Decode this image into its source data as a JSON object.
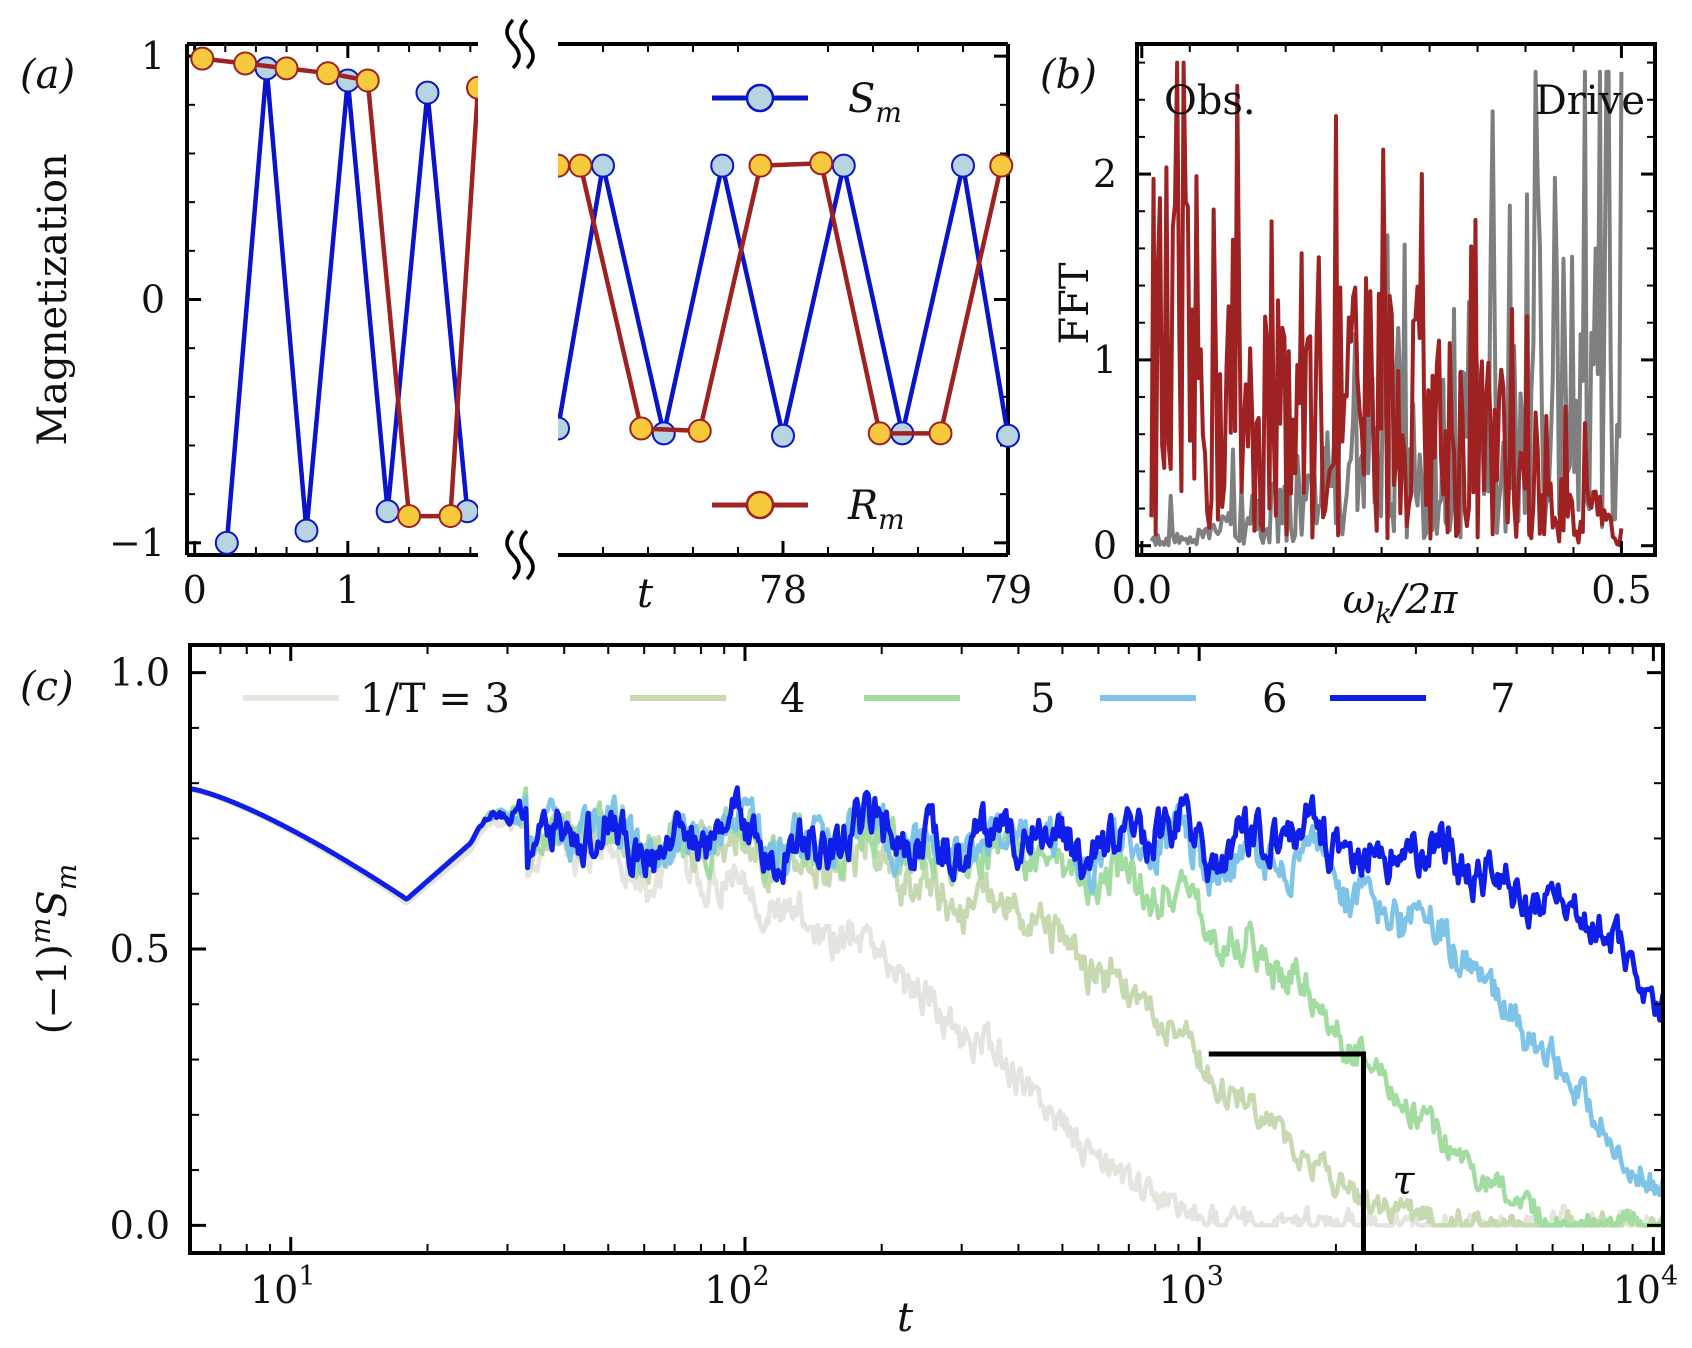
{
  "panels": {
    "a": {
      "label": "(a)"
    },
    "b": {
      "label": "(b)"
    },
    "c": {
      "label": "(c)"
    }
  },
  "chart_data": [
    {
      "panel": "a",
      "type": "line",
      "ylabel": "Magnetization",
      "xlabel": "t",
      "ylim": [
        -1.05,
        1.05
      ],
      "yticks": [
        -1,
        0,
        1
      ],
      "ytick_labels": [
        "−1",
        "0",
        "1"
      ],
      "broken_x_axis": true,
      "left_segment": {
        "xlim": [
          -0.05,
          1.85
        ],
        "xticks": [
          0,
          1
        ],
        "xtick_labels": [
          "0",
          "1"
        ]
      },
      "right_segment": {
        "xlim": [
          77.0,
          79.0
        ],
        "xticks": [
          78,
          79
        ],
        "xtick_labels": [
          "78",
          "79"
        ]
      },
      "series": [
        {
          "name": "S_m",
          "legend_label": "S",
          "legend_sub": "m",
          "color": "#0a14c8",
          "marker_fill": "#b7d4e2",
          "left": {
            "x": [
              0.21,
              0.47,
              0.73,
              1.0,
              1.26,
              1.52,
              1.78
            ],
            "y": [
              -1.0,
              0.95,
              -0.95,
              0.9,
              -0.87,
              0.85,
              -0.87
            ]
          },
          "right": {
            "x": [
              77.0,
              77.2,
              77.47,
              77.73,
              78.0,
              78.27,
              78.53,
              78.8,
              79.0
            ],
            "y": [
              -0.53,
              0.55,
              -0.55,
              0.55,
              -0.56,
              0.55,
              -0.55,
              0.55,
              -0.56
            ]
          }
        },
        {
          "name": "R_m",
          "legend_label": "R",
          "legend_sub": "m",
          "color": "#9e2222",
          "marker_fill": "#f7c93c",
          "left": {
            "x": [
              0.05,
              0.33,
              0.6,
              0.87,
              1.13,
              1.4,
              1.67,
              1.85
            ],
            "y": [
              0.99,
              0.97,
              0.95,
              0.93,
              0.9,
              -0.89,
              -0.89,
              0.87
            ]
          },
          "right": {
            "x": [
              77.0,
              77.1,
              77.37,
              77.63,
              77.9,
              78.17,
              78.43,
              78.7,
              78.97
            ],
            "y": [
              0.55,
              0.55,
              -0.53,
              -0.54,
              0.55,
              0.56,
              -0.55,
              -0.55,
              0.55
            ]
          }
        }
      ]
    },
    {
      "panel": "b",
      "type": "line",
      "ylabel": "FFT",
      "xlabel": "ω",
      "xlabel_sub": "k",
      "xlabel_tail": "/2π",
      "xlim": [
        -0.005,
        0.535
      ],
      "ylim": [
        -0.05,
        2.7
      ],
      "xticks": [
        0.0,
        0.5
      ],
      "xtick_labels": [
        "0.0",
        "0.5"
      ],
      "yticks": [
        0,
        1,
        2
      ],
      "ytick_labels": [
        "0",
        "1",
        "2"
      ],
      "annotations": [
        "Obs.",
        "Drive"
      ],
      "series": [
        {
          "name": "Obs.",
          "color": "#9e2222",
          "x_start": 0.01,
          "x_end": 0.5,
          "n": 220,
          "trend": [
            [
              0.0,
              1.1
            ],
            [
              0.15,
              0.9
            ],
            [
              0.3,
              0.75
            ],
            [
              0.4,
              0.45
            ],
            [
              0.45,
              0.25
            ],
            [
              0.5,
              0.05
            ]
          ],
          "peak": 2.6
        },
        {
          "name": "Drive",
          "color": "#7f7f7f",
          "x_start": 0.01,
          "x_end": 0.5,
          "n": 220,
          "trend": [
            [
              0.0,
              0.02
            ],
            [
              0.1,
              0.1
            ],
            [
              0.2,
              0.35
            ],
            [
              0.3,
              0.75
            ],
            [
              0.4,
              1.05
            ],
            [
              0.5,
              1.1
            ]
          ],
          "peak": 2.55
        }
      ]
    },
    {
      "panel": "c",
      "type": "line",
      "xlabel": "t",
      "ylabel_parts": [
        "(−1)",
        "m",
        "S",
        "m"
      ],
      "xscale": "log",
      "xlim": [
        6,
        10500
      ],
      "ylim": [
        -0.05,
        1.05
      ],
      "xticks": [
        10,
        100,
        1000,
        10000
      ],
      "xtick_labels": [
        [
          "10",
          "1"
        ],
        [
          "10",
          "2"
        ],
        [
          "10",
          "3"
        ],
        [
          "10",
          "4"
        ]
      ],
      "yticks": [
        0.0,
        0.5,
        1.0
      ],
      "ytick_labels": [
        "0.0",
        "0.5",
        "1.0"
      ],
      "legend": {
        "placement": "top",
        "prefix": "1/T = "
      },
      "annotation": {
        "text": "τ",
        "x_from": 1050,
        "x_at": 2300,
        "y_level": 0.31
      },
      "series": [
        {
          "name": "1/T = 3",
          "label": "1/T = 3",
          "color": "#e6e4df",
          "decay_tau": 400,
          "decay_p": 1.4
        },
        {
          "name": "4",
          "label": "4",
          "color": "#c6d9b1",
          "decay_tau": 1150,
          "decay_p": 1.4
        },
        {
          "name": "5",
          "label": "5",
          "color": "#a3dca0",
          "decay_tau": 2600,
          "decay_p": 1.6
        },
        {
          "name": "6",
          "label": "6",
          "color": "#7ec3e8",
          "decay_tau": 6500,
          "decay_p": 1.8
        },
        {
          "name": "7",
          "label": "7",
          "color": "#0f1ee8",
          "decay_tau": 14500,
          "decay_p": 2.0
        }
      ]
    }
  ]
}
